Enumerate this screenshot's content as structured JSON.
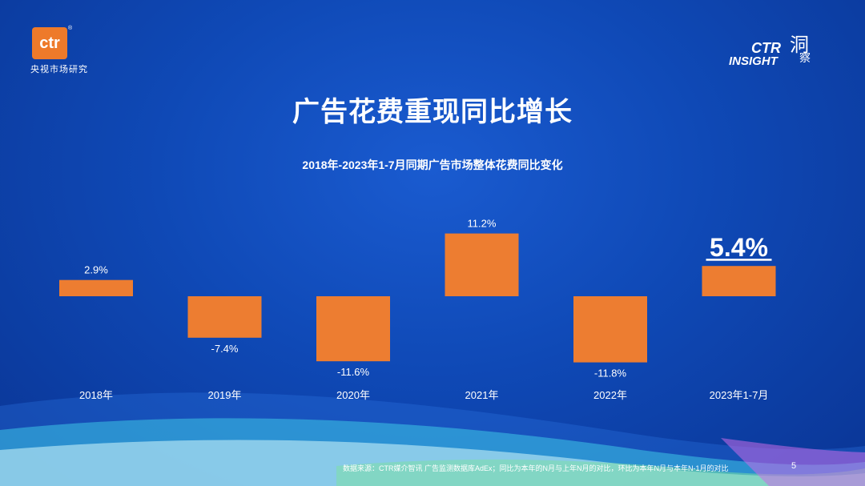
{
  "logo_left": {
    "mark": "ctr",
    "reg": "®",
    "subtitle": "央视市场研究"
  },
  "logo_right": {
    "ctr": "CTR",
    "insight": "INSIGHT",
    "han1": "洞",
    "han2": "察"
  },
  "title": "广告花费重现同比增长",
  "chart_data": {
    "type": "bar",
    "title": "2018年-2023年1-7月同期广告市场整体花费同比变化",
    "categories": [
      "2018年",
      "2019年",
      "2020年",
      "2021年",
      "2022年",
      "2023年1-7月"
    ],
    "values": [
      2.9,
      -7.4,
      -11.6,
      11.2,
      -11.8,
      5.4
    ],
    "labels": [
      "2.9%",
      "-7.4%",
      "-11.6%",
      "11.2%",
      "-11.8%",
      "5.4%"
    ],
    "highlight_index": 5,
    "bar_color": "#ed7d31",
    "xlabel": "",
    "ylabel": ""
  },
  "footnote": "数据来源：CTR媒介智讯 广告监测数据库AdEx；同比为本年的N月与上年N月的对比，环比为本年N月与本年N-1月的对比",
  "page_number": "5"
}
